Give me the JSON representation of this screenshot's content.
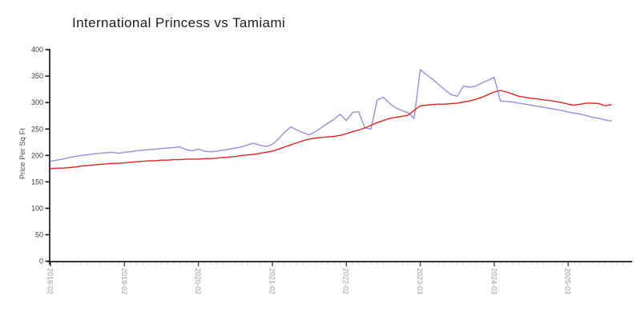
{
  "title": "International Princess vs Tamiami",
  "chart_data": {
    "type": "line",
    "title": "International Princess vs Tamiami",
    "xlabel": "",
    "ylabel": "Price Per Sq Ft",
    "ylim": [
      0,
      400
    ],
    "yticks": [
      0,
      50,
      100,
      150,
      200,
      250,
      300,
      350,
      400
    ],
    "grid": false,
    "legend_position": "none",
    "x_categories": [
      "2018-02",
      "2018-03",
      "2018-04",
      "2018-05",
      "2018-06",
      "2018-07",
      "2018-08",
      "2018-09",
      "2018-10",
      "2018-11",
      "2018-12",
      "2019-01",
      "2019-02",
      "2019-03",
      "2019-04",
      "2019-05",
      "2019-06",
      "2019-07",
      "2019-08",
      "2019-09",
      "2019-10",
      "2019-11",
      "2019-12",
      "2020-01",
      "2020-02",
      "2020-03",
      "2020-04",
      "2020-05",
      "2020-06",
      "2020-07",
      "2020-08",
      "2020-09",
      "2020-10",
      "2020-11",
      "2020-12",
      "2021-01",
      "2021-02",
      "2021-03",
      "2021-04",
      "2021-05",
      "2021-06",
      "2021-07",
      "2021-08",
      "2021-09",
      "2021-10",
      "2021-11",
      "2021-12",
      "2022-01",
      "2022-02",
      "2022-03",
      "2022-04",
      "2022-05",
      "2022-06",
      "2022-07",
      "2022-08",
      "2022-09",
      "2022-10",
      "2022-11",
      "2023-01",
      "2023-02",
      "2023-03",
      "2023-04",
      "2023-05",
      "2023-06",
      "2023-07",
      "2023-08",
      "2023-09",
      "2023-10",
      "2023-11",
      "2023-12",
      "2024-01",
      "2024-02",
      "2024-03",
      "2024-04",
      "2024-05",
      "2024-06",
      "2024-07",
      "2024-08",
      "2024-09",
      "2024-10",
      "2024-11",
      "2024-12",
      "2025-01",
      "2025-02",
      "2025-03",
      "2025-04",
      "2025-05",
      "2025-06",
      "2025-07",
      "2025-08",
      "2025-09",
      "2025-10"
    ],
    "xtick_labels": [
      "2018-02",
      "2019-02",
      "2020-02",
      "2021-02",
      "2022-02",
      "2023-03",
      "2024-03",
      "2025-03"
    ],
    "xtick_indices": [
      0,
      12,
      24,
      36,
      48,
      60,
      72,
      84
    ],
    "series": [
      {
        "name": "International Princess",
        "color": "#9292dc",
        "values": [
          189,
          191,
          193,
          196,
          198,
          200,
          201,
          203,
          204,
          205,
          206,
          204,
          206,
          207,
          209,
          210,
          211,
          212,
          213,
          214,
          215,
          216,
          211,
          209,
          212,
          208,
          207,
          208,
          210,
          212,
          214,
          216,
          220,
          223,
          219,
          217,
          221,
          231,
          244,
          254,
          248,
          243,
          239,
          245,
          253,
          261,
          268,
          278,
          266,
          281,
          283,
          252,
          250,
          305,
          310,
          299,
          290,
          285,
          281,
          270,
          362,
          353,
          344,
          334,
          324,
          315,
          312,
          331,
          329,
          331,
          337,
          342,
          348,
          303,
          302,
          301,
          299,
          297,
          295,
          293,
          291,
          289,
          287,
          285,
          282,
          280,
          278,
          275,
          272,
          270,
          267,
          265
        ]
      },
      {
        "name": "Tamiami",
        "color": "#e02424",
        "values": [
          175,
          176,
          176,
          177,
          178,
          180,
          181,
          182,
          183,
          184,
          185,
          185,
          186,
          187,
          188,
          189,
          190,
          190,
          191,
          191,
          192,
          192,
          193,
          193,
          193,
          194,
          194,
          195,
          196,
          197,
          198,
          200,
          201,
          202,
          204,
          206,
          208,
          212,
          216,
          220,
          224,
          228,
          231,
          233,
          234,
          235,
          236,
          238,
          241,
          245,
          248,
          252,
          257,
          262,
          266,
          270,
          272,
          274,
          276,
          285,
          294,
          295,
          296,
          297,
          297,
          298,
          299,
          301,
          303,
          306,
          310,
          315,
          320,
          323,
          320,
          316,
          312,
          310,
          308,
          307,
          305,
          304,
          302,
          300,
          297,
          295,
          297,
          299,
          299,
          298,
          294,
          296
        ]
      }
    ]
  }
}
